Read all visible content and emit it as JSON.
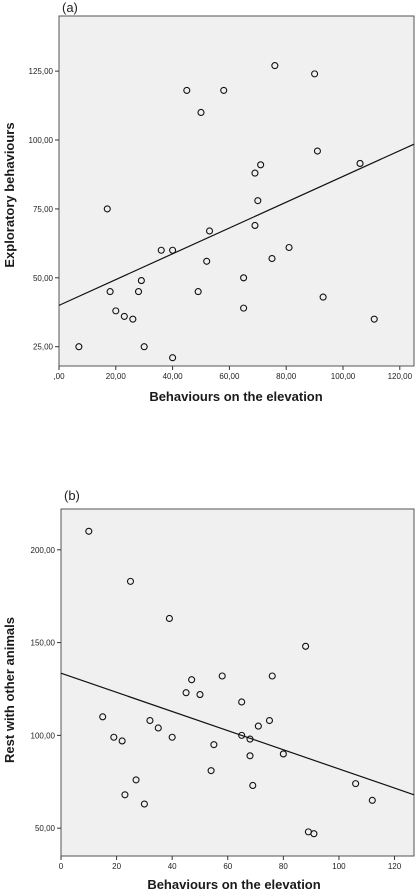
{
  "chart_data": [
    {
      "type": "scatter",
      "panel_label": "(a)",
      "xlabel": "Behaviours on the elevation",
      "ylabel": "Exploratory behaviours",
      "xlim": [
        0,
        125
      ],
      "ylim": [
        18,
        145
      ],
      "xticks": [
        0,
        20,
        40,
        60,
        80,
        100,
        120
      ],
      "xtick_labels": [
        ",00",
        "20,00",
        "40,00",
        "60,00",
        "80,00",
        "100,00",
        "120,00"
      ],
      "yticks": [
        25,
        50,
        75,
        100,
        125
      ],
      "ytick_labels": [
        "25,00",
        "50,00",
        "75,00",
        "100,00",
        "125,00"
      ],
      "fit_line": {
        "x": [
          0,
          125
        ],
        "y": [
          40,
          98.5
        ]
      },
      "grid": false,
      "background": "#f0f0f0",
      "points": [
        {
          "x": 7,
          "y": 25
        },
        {
          "x": 17,
          "y": 75
        },
        {
          "x": 18,
          "y": 45
        },
        {
          "x": 20,
          "y": 38
        },
        {
          "x": 23,
          "y": 36
        },
        {
          "x": 26,
          "y": 35
        },
        {
          "x": 28,
          "y": 45
        },
        {
          "x": 29,
          "y": 49
        },
        {
          "x": 30,
          "y": 25
        },
        {
          "x": 36,
          "y": 60
        },
        {
          "x": 40,
          "y": 60
        },
        {
          "x": 40,
          "y": 21
        },
        {
          "x": 45,
          "y": 118
        },
        {
          "x": 49,
          "y": 45
        },
        {
          "x": 50,
          "y": 110
        },
        {
          "x": 52,
          "y": 56
        },
        {
          "x": 53,
          "y": 67
        },
        {
          "x": 58,
          "y": 118
        },
        {
          "x": 65,
          "y": 50
        },
        {
          "x": 65,
          "y": 39
        },
        {
          "x": 69,
          "y": 69
        },
        {
          "x": 69,
          "y": 88
        },
        {
          "x": 70,
          "y": 78
        },
        {
          "x": 71,
          "y": 91
        },
        {
          "x": 75,
          "y": 57
        },
        {
          "x": 76,
          "y": 127
        },
        {
          "x": 81,
          "y": 61
        },
        {
          "x": 90,
          "y": 124
        },
        {
          "x": 91,
          "y": 96
        },
        {
          "x": 93,
          "y": 43
        },
        {
          "x": 106,
          "y": 91.5
        },
        {
          "x": 111,
          "y": 35
        }
      ]
    },
    {
      "type": "scatter",
      "panel_label": "(b)",
      "xlabel": "Behaviours on the elevation",
      "ylabel": "Rest with other animals",
      "xlim": [
        0,
        127
      ],
      "ylim": [
        35,
        222
      ],
      "xticks": [
        0,
        20,
        40,
        60,
        80,
        100,
        120
      ],
      "xtick_labels": [
        "0",
        "20",
        "40",
        "60",
        "80",
        "100",
        "120"
      ],
      "yticks": [
        50,
        100,
        150,
        200
      ],
      "ytick_labels": [
        "50,00",
        "100,00",
        "150,00",
        "200,00"
      ],
      "fit_line": {
        "x": [
          0,
          127
        ],
        "y": [
          133.5,
          68
        ]
      },
      "grid": false,
      "background": "#f0f0f0",
      "points": [
        {
          "x": 10,
          "y": 210
        },
        {
          "x": 15,
          "y": 110
        },
        {
          "x": 19,
          "y": 99
        },
        {
          "x": 22,
          "y": 97
        },
        {
          "x": 23,
          "y": 68
        },
        {
          "x": 25,
          "y": 183
        },
        {
          "x": 27,
          "y": 76
        },
        {
          "x": 30,
          "y": 63
        },
        {
          "x": 32,
          "y": 108
        },
        {
          "x": 35,
          "y": 104
        },
        {
          "x": 39,
          "y": 163
        },
        {
          "x": 40,
          "y": 99
        },
        {
          "x": 45,
          "y": 123
        },
        {
          "x": 47,
          "y": 130
        },
        {
          "x": 50,
          "y": 122
        },
        {
          "x": 54,
          "y": 81
        },
        {
          "x": 55,
          "y": 95
        },
        {
          "x": 58,
          "y": 132
        },
        {
          "x": 65,
          "y": 118
        },
        {
          "x": 65,
          "y": 100
        },
        {
          "x": 68,
          "y": 98
        },
        {
          "x": 68,
          "y": 89
        },
        {
          "x": 69,
          "y": 73
        },
        {
          "x": 71,
          "y": 105
        },
        {
          "x": 75,
          "y": 108
        },
        {
          "x": 76,
          "y": 132
        },
        {
          "x": 80,
          "y": 90
        },
        {
          "x": 88,
          "y": 148
        },
        {
          "x": 89,
          "y": 48
        },
        {
          "x": 91,
          "y": 47
        },
        {
          "x": 106,
          "y": 74
        },
        {
          "x": 112,
          "y": 65
        }
      ]
    }
  ]
}
